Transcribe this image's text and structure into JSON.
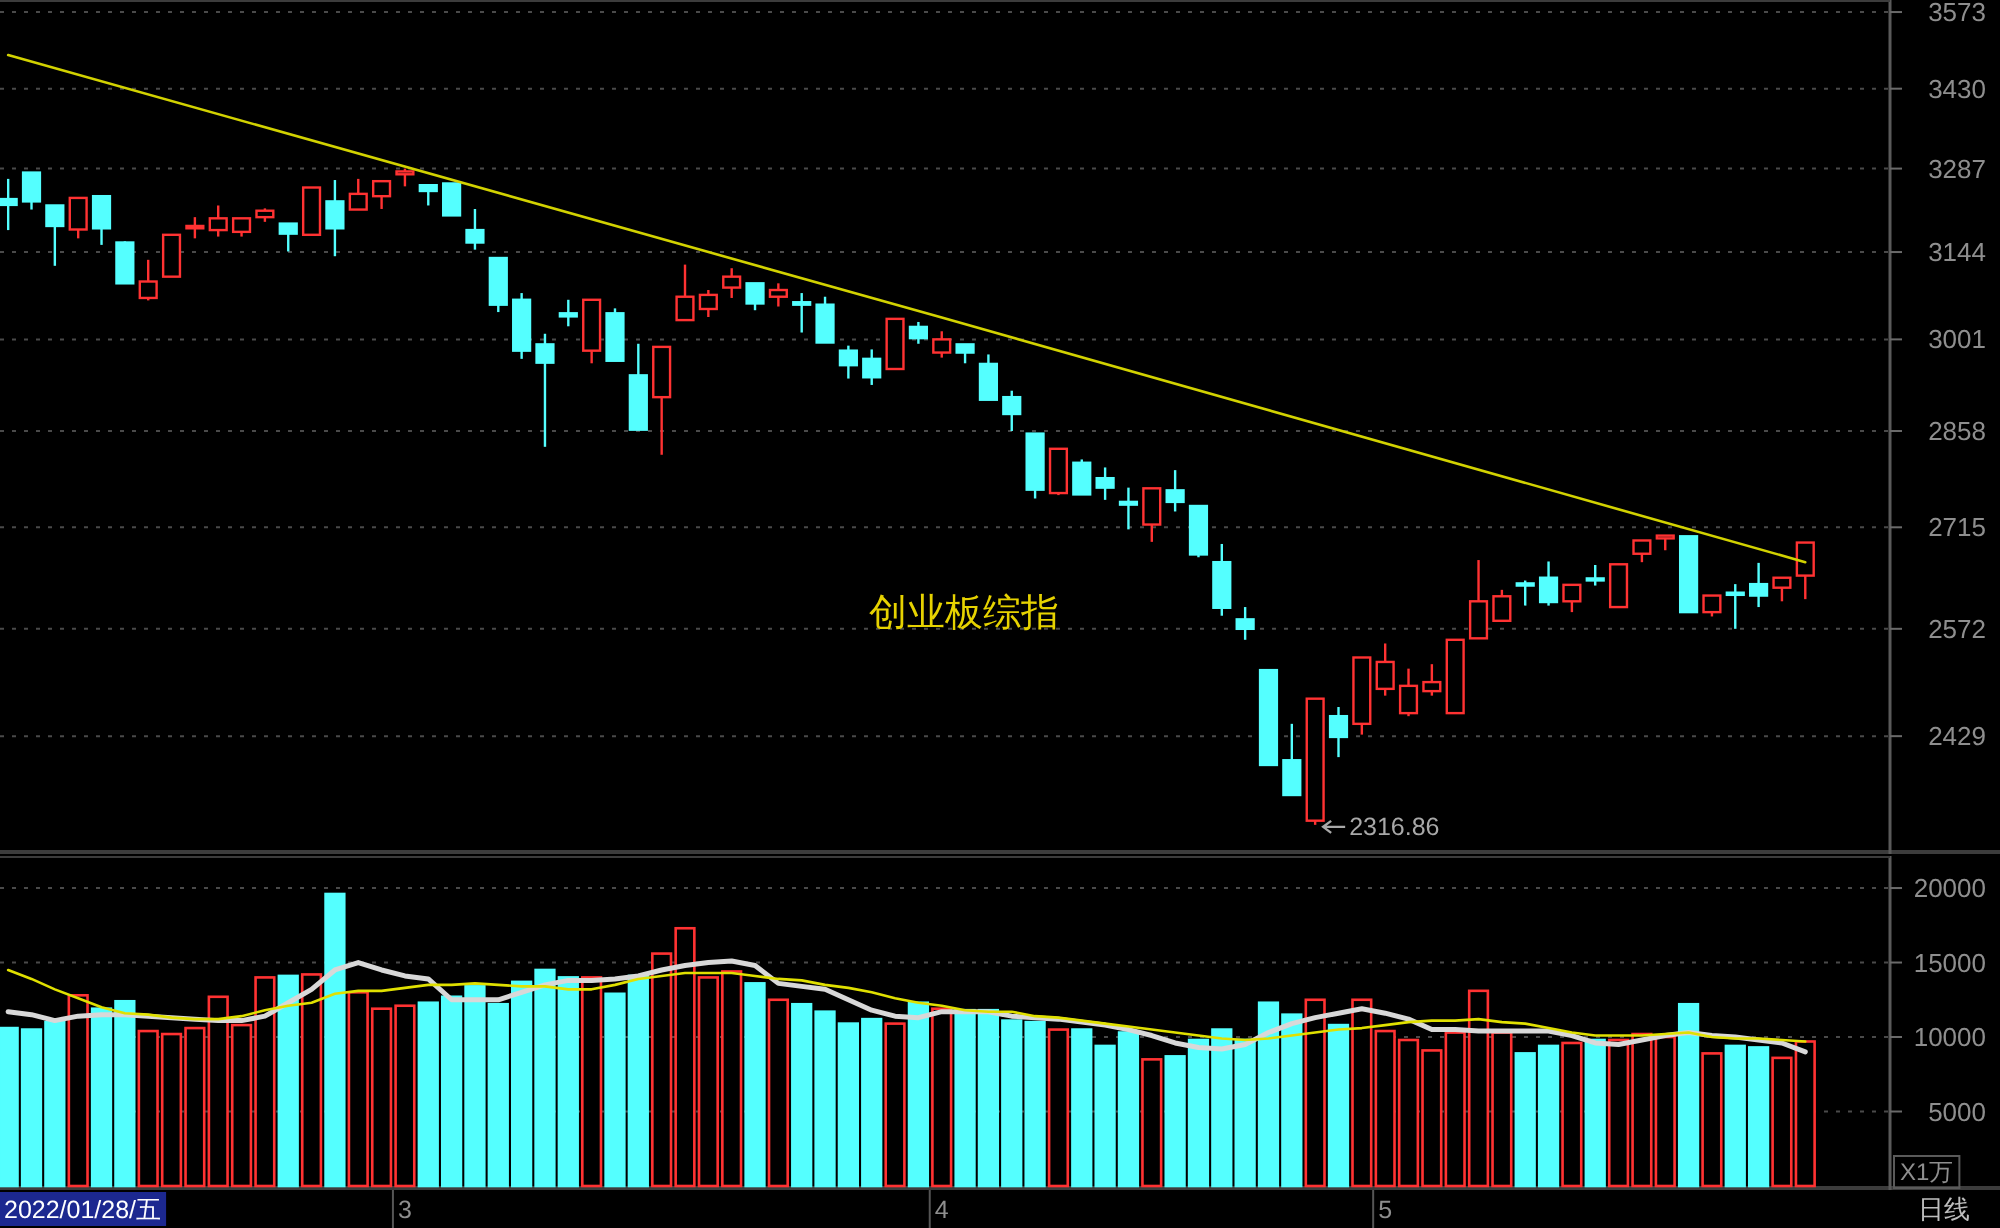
{
  "chart_data": [
    {
      "type": "candlestick",
      "categories": [
        null,
        null,
        null,
        null,
        null,
        null,
        null,
        null,
        null,
        null,
        null,
        null,
        null,
        null,
        null,
        null,
        null,
        null,
        null,
        null,
        null,
        null,
        null,
        null,
        null,
        null,
        null,
        null,
        null,
        null,
        null,
        null,
        null,
        null,
        null,
        null,
        null,
        null,
        null,
        null,
        null,
        null,
        null,
        null,
        null,
        null,
        null,
        null,
        null,
        null,
        null,
        null,
        null,
        null,
        null,
        null,
        null,
        null,
        null,
        null,
        null,
        null,
        null,
        null,
        null,
        null,
        null,
        null,
        null,
        null,
        null,
        null,
        null,
        null,
        null,
        null,
        null,
        null
      ],
      "ohlc": [
        [
          3234,
          3269,
          3181,
          3224
        ],
        [
          3280,
          3280,
          3216,
          3230
        ],
        [
          3223,
          3223,
          3121,
          3188
        ],
        [
          3182,
          3236,
          3167,
          3236
        ],
        [
          3239,
          3239,
          3156,
          3184
        ],
        [
          3160,
          3162,
          3092,
          3092
        ],
        [
          3068,
          3131,
          3064,
          3095
        ],
        [
          3103,
          3173,
          3103,
          3173
        ],
        [
          3184,
          3203,
          3167,
          3188
        ],
        [
          3181,
          3223,
          3170,
          3201
        ],
        [
          3178,
          3201,
          3170,
          3201
        ],
        [
          3203,
          3218,
          3195,
          3214
        ],
        [
          3192,
          3192,
          3145,
          3175
        ],
        [
          3173,
          3254,
          3173,
          3254
        ],
        [
          3230,
          3267,
          3137,
          3184
        ],
        [
          3216,
          3269,
          3216,
          3243
        ],
        [
          3239,
          3265,
          3217,
          3265
        ],
        [
          3277,
          3287,
          3256,
          3282
        ],
        [
          3258,
          3258,
          3223,
          3248
        ],
        [
          3261,
          3261,
          3206,
          3206
        ],
        [
          3181,
          3217,
          3148,
          3160
        ],
        [
          3134,
          3134,
          3045,
          3057
        ],
        [
          3065,
          3076,
          2970,
          2983
        ],
        [
          2993,
          3010,
          2834,
          2964
        ],
        [
          3043,
          3065,
          3022,
          3038
        ],
        [
          2983,
          3065,
          2963,
          3065
        ],
        [
          3043,
          3051,
          2967,
          2967
        ],
        [
          2944,
          2994,
          2860,
          2860
        ],
        [
          2910,
          2989,
          2822,
          2989
        ],
        [
          3032,
          3123,
          3032,
          3070
        ],
        [
          3050,
          3081,
          3037,
          3073
        ],
        [
          3085,
          3117,
          3068,
          3103
        ],
        [
          3092,
          3092,
          3048,
          3059
        ],
        [
          3070,
          3092,
          3054,
          3081
        ],
        [
          3061,
          3076,
          3012,
          3057
        ],
        [
          3057,
          3070,
          2996,
          2996
        ],
        [
          2983,
          2991,
          2939,
          2960
        ],
        [
          2970,
          2985,
          2929,
          2941
        ],
        [
          2954,
          3034,
          2954,
          3034
        ],
        [
          3021,
          3029,
          2994,
          3003
        ],
        [
          2980,
          3014,
          2972,
          3001
        ],
        [
          2993,
          2993,
          2963,
          2980
        ],
        [
          2962,
          2977,
          2906,
          2906
        ],
        [
          2910,
          2920,
          2858,
          2884
        ],
        [
          2854,
          2854,
          2757,
          2770
        ],
        [
          2765,
          2831,
          2762,
          2831
        ],
        [
          2810,
          2815,
          2763,
          2763
        ],
        [
          2787,
          2803,
          2755,
          2773
        ],
        [
          2752,
          2773,
          2712,
          2748
        ],
        [
          2719,
          2772,
          2694,
          2772
        ],
        [
          2769,
          2799,
          2738,
          2752
        ],
        [
          2746,
          2746,
          2672,
          2676
        ],
        [
          2665,
          2691,
          2590,
          2601
        ],
        [
          2585,
          2602,
          2557,
          2572
        ],
        [
          2516,
          2516,
          2392,
          2392
        ],
        [
          2398,
          2445,
          2354,
          2354
        ],
        [
          2322,
          2478,
          2316.86,
          2478
        ],
        [
          2455,
          2467,
          2402,
          2428
        ],
        [
          2445,
          2533,
          2431,
          2533
        ],
        [
          2491,
          2552,
          2482,
          2527
        ],
        [
          2459,
          2518,
          2455,
          2495
        ],
        [
          2488,
          2524,
          2482,
          2500
        ],
        [
          2459,
          2557,
          2459,
          2557
        ],
        [
          2559,
          2668,
          2559,
          2610
        ],
        [
          2583,
          2626,
          2583,
          2617
        ],
        [
          2635,
          2639,
          2604,
          2632
        ],
        [
          2643,
          2666,
          2604,
          2609
        ],
        [
          2610,
          2633,
          2595,
          2633
        ],
        [
          2642,
          2661,
          2632,
          2640
        ],
        [
          2602,
          2662,
          2602,
          2662
        ],
        [
          2677,
          2696,
          2665,
          2696
        ],
        [
          2699,
          2703,
          2682,
          2703
        ],
        [
          2702,
          2702,
          2595,
          2595
        ],
        [
          2595,
          2618,
          2589,
          2618
        ],
        [
          2622,
          2634,
          2572,
          2619
        ],
        [
          2634,
          2664,
          2602,
          2618
        ],
        [
          2629,
          2643,
          2610,
          2643
        ],
        [
          2646,
          2693,
          2613,
          2693
        ]
      ],
      "colors": [
        "#54ffff",
        "#54ffff",
        "#54ffff",
        "#ff3232",
        "#54ffff",
        "#54ffff",
        "#ff3232",
        "#ff3232",
        "#ff3232",
        "#ff3232",
        "#ff3232",
        "#ff3232",
        "#54ffff",
        "#ff3232",
        "#54ffff",
        "#ff3232",
        "#ff3232",
        "#ff3232",
        "#54ffff",
        "#54ffff",
        "#54ffff",
        "#54ffff",
        "#54ffff",
        "#54ffff",
        "#54ffff",
        "#ff3232",
        "#54ffff",
        "#54ffff",
        "#ff3232",
        "#ff3232",
        "#ff3232",
        "#ff3232",
        "#54ffff",
        "#ff3232",
        "#54ffff",
        "#54ffff",
        "#54ffff",
        "#54ffff",
        "#ff3232",
        "#54ffff",
        "#ff3232",
        "#54ffff",
        "#54ffff",
        "#54ffff",
        "#54ffff",
        "#ff3232",
        "#54ffff",
        "#54ffff",
        "#54ffff",
        "#ff3232",
        "#54ffff",
        "#54ffff",
        "#54ffff",
        "#54ffff",
        "#54ffff",
        "#54ffff",
        "#ff3232",
        "#54ffff",
        "#ff3232",
        "#ff3232",
        "#ff3232",
        "#ff3232",
        "#ff3232",
        "#ff3232",
        "#ff3232",
        "#54ffff",
        "#54ffff",
        "#ff3232",
        "#54ffff",
        "#ff3232",
        "#ff3232",
        "#ff3232",
        "#54ffff",
        "#ff3232",
        "#54ffff",
        "#54ffff",
        "#ff3232",
        "#ff3232"
      ],
      "series": [
        {
          "type": "line",
          "color": "#d2d200",
          "values": [
            3492,
            null,
            null,
            null,
            null,
            null,
            null,
            null,
            null,
            null,
            null,
            null,
            null,
            null,
            null,
            null,
            null,
            null,
            null,
            null,
            null,
            null,
            null,
            null,
            null,
            null,
            null,
            null,
            null,
            null,
            null,
            null,
            null,
            null,
            null,
            null,
            null,
            null,
            null,
            null,
            3036,
            null,
            null,
            null,
            null,
            null,
            null,
            null,
            null,
            null,
            null,
            null,
            null,
            null,
            null,
            null,
            null,
            null,
            null,
            null,
            null,
            null,
            null,
            null,
            null,
            null,
            null,
            null,
            null,
            null,
            null,
            null,
            null,
            null,
            null,
            null,
            null,
            2665
          ]
        }
      ],
      "log": true,
      "ylim": [
        2286,
        3596
      ],
      "yticks": [
        2429,
        2572,
        2715,
        2858,
        3001,
        3144,
        3287,
        3430,
        3573
      ],
      "grid": "y",
      "tick_labels": "y",
      "annotations": [
        "创业板综指",
        "2316.86"
      ]
    },
    {
      "type": "bar",
      "categories": [
        null,
        null,
        null,
        null,
        null,
        null,
        null,
        null,
        null,
        null,
        null,
        null,
        null,
        null,
        null,
        null,
        null,
        "3",
        null,
        null,
        null,
        null,
        null,
        null,
        null,
        null,
        null,
        null,
        null,
        null,
        null,
        null,
        null,
        null,
        null,
        null,
        null,
        null,
        null,
        null,
        "4",
        null,
        null,
        null,
        null,
        null,
        null,
        null,
        null,
        null,
        null,
        null,
        null,
        null,
        null,
        null,
        null,
        null,
        null,
        "5",
        null,
        null,
        null,
        null,
        null,
        null,
        null,
        null,
        null,
        null,
        null,
        null,
        null,
        null,
        null,
        null,
        null,
        null
      ],
      "series": [
        {
          "type": "bar",
          "colors": [
            "#54ffff",
            "#54ffff",
            "#54ffff",
            "#ff3232",
            "#54ffff",
            "#54ffff",
            "#ff3232",
            "#ff3232",
            "#ff3232",
            "#ff3232",
            "#ff3232",
            "#ff3232",
            "#54ffff",
            "#ff3232",
            "#54ffff",
            "#ff3232",
            "#ff3232",
            "#ff3232",
            "#54ffff",
            "#54ffff",
            "#54ffff",
            "#54ffff",
            "#54ffff",
            "#54ffff",
            "#54ffff",
            "#ff3232",
            "#54ffff",
            "#54ffff",
            "#ff3232",
            "#ff3232",
            "#ff3232",
            "#ff3232",
            "#54ffff",
            "#ff3232",
            "#54ffff",
            "#54ffff",
            "#54ffff",
            "#54ffff",
            "#ff3232",
            "#54ffff",
            "#ff3232",
            "#54ffff",
            "#54ffff",
            "#54ffff",
            "#54ffff",
            "#ff3232",
            "#54ffff",
            "#54ffff",
            "#54ffff",
            "#ff3232",
            "#54ffff",
            "#54ffff",
            "#54ffff",
            "#54ffff",
            "#54ffff",
            "#54ffff",
            "#ff3232",
            "#54ffff",
            "#ff3232",
            "#ff3232",
            "#ff3232",
            "#ff3232",
            "#ff3232",
            "#ff3232",
            "#ff3232",
            "#54ffff",
            "#54ffff",
            "#ff3232",
            "#54ffff",
            "#ff3232",
            "#ff3232",
            "#ff3232",
            "#54ffff",
            "#ff3232",
            "#54ffff",
            "#54ffff",
            "#ff3232",
            "#ff3232"
          ],
          "values": [
            10600,
            10500,
            11000,
            12800,
            11900,
            12400,
            10400,
            10200,
            10600,
            12700,
            10800,
            14000,
            14100,
            14200,
            19600,
            13000,
            11900,
            12100,
            12300,
            12700,
            13400,
            12200,
            13700,
            14500,
            14000,
            14000,
            12900,
            14100,
            15600,
            17300,
            14000,
            14400,
            13600,
            12500,
            12200,
            11700,
            10900,
            11200,
            10900,
            12300,
            11900,
            11800,
            11800,
            11100,
            11000,
            10500,
            10500,
            9400,
            10300,
            8500,
            8700,
            9800,
            10500,
            9800,
            12300,
            11500,
            12500,
            10800,
            12500,
            10400,
            9800,
            9100,
            10300,
            13100,
            10300,
            8900,
            9400,
            9600,
            9800,
            9800,
            10200,
            10000,
            12200,
            8900,
            9400,
            9300,
            8600,
            9700
          ]
        },
        {
          "type": "line",
          "color": "#d8d8d8",
          "values": [
            11700,
            11500,
            11100,
            11400,
            11500,
            11500,
            11400,
            11300,
            11200,
            11100,
            11100,
            11400,
            12300,
            13200,
            14500,
            15000,
            14500,
            14100,
            13900,
            12500,
            12500,
            12500,
            13000,
            13500,
            13800,
            13800,
            13900,
            14100,
            14500,
            14800,
            15000,
            15100,
            14800,
            13600,
            13400,
            13200,
            12500,
            11800,
            11400,
            11300,
            11700,
            11700,
            11700,
            11400,
            11300,
            11200,
            11000,
            10800,
            10500,
            10100,
            9600,
            9300,
            9200,
            9500,
            10300,
            10900,
            11300,
            11600,
            11900,
            11600,
            11200,
            10500,
            10500,
            10400,
            10400,
            10400,
            10400,
            10100,
            9600,
            9500,
            9800,
            10100,
            10300,
            10100,
            10000,
            9800,
            9600,
            9000
          ]
        },
        {
          "type": "line",
          "color": "#e0e000",
          "values": [
            14500,
            13900,
            13200,
            12600,
            12000,
            11600,
            11500,
            11300,
            11200,
            11200,
            11400,
            11800,
            12100,
            12300,
            12900,
            13100,
            13100,
            13300,
            13500,
            13500,
            13600,
            13500,
            13400,
            13400,
            13200,
            13200,
            13500,
            13900,
            14100,
            14300,
            14300,
            14300,
            14100,
            13900,
            13800,
            13500,
            13300,
            13000,
            12600,
            12300,
            12100,
            11800,
            11700,
            11700,
            11400,
            11300,
            11100,
            10900,
            10700,
            10500,
            10300,
            10100,
            9900,
            9800,
            9900,
            10100,
            10300,
            10500,
            10600,
            10800,
            11000,
            11100,
            11100,
            11200,
            11000,
            10900,
            10600,
            10300,
            10100,
            10100,
            10100,
            10200,
            10300,
            10000,
            9900,
            9900,
            9800,
            9700
          ]
        }
      ],
      "ylim": [
        0,
        22150
      ],
      "yticks": [
        5000,
        10000,
        15000,
        20000
      ],
      "grid": "y",
      "ylabel": "X1万",
      "annotations": [
        "2022/01/28/五",
        "日线"
      ]
    }
  ]
}
